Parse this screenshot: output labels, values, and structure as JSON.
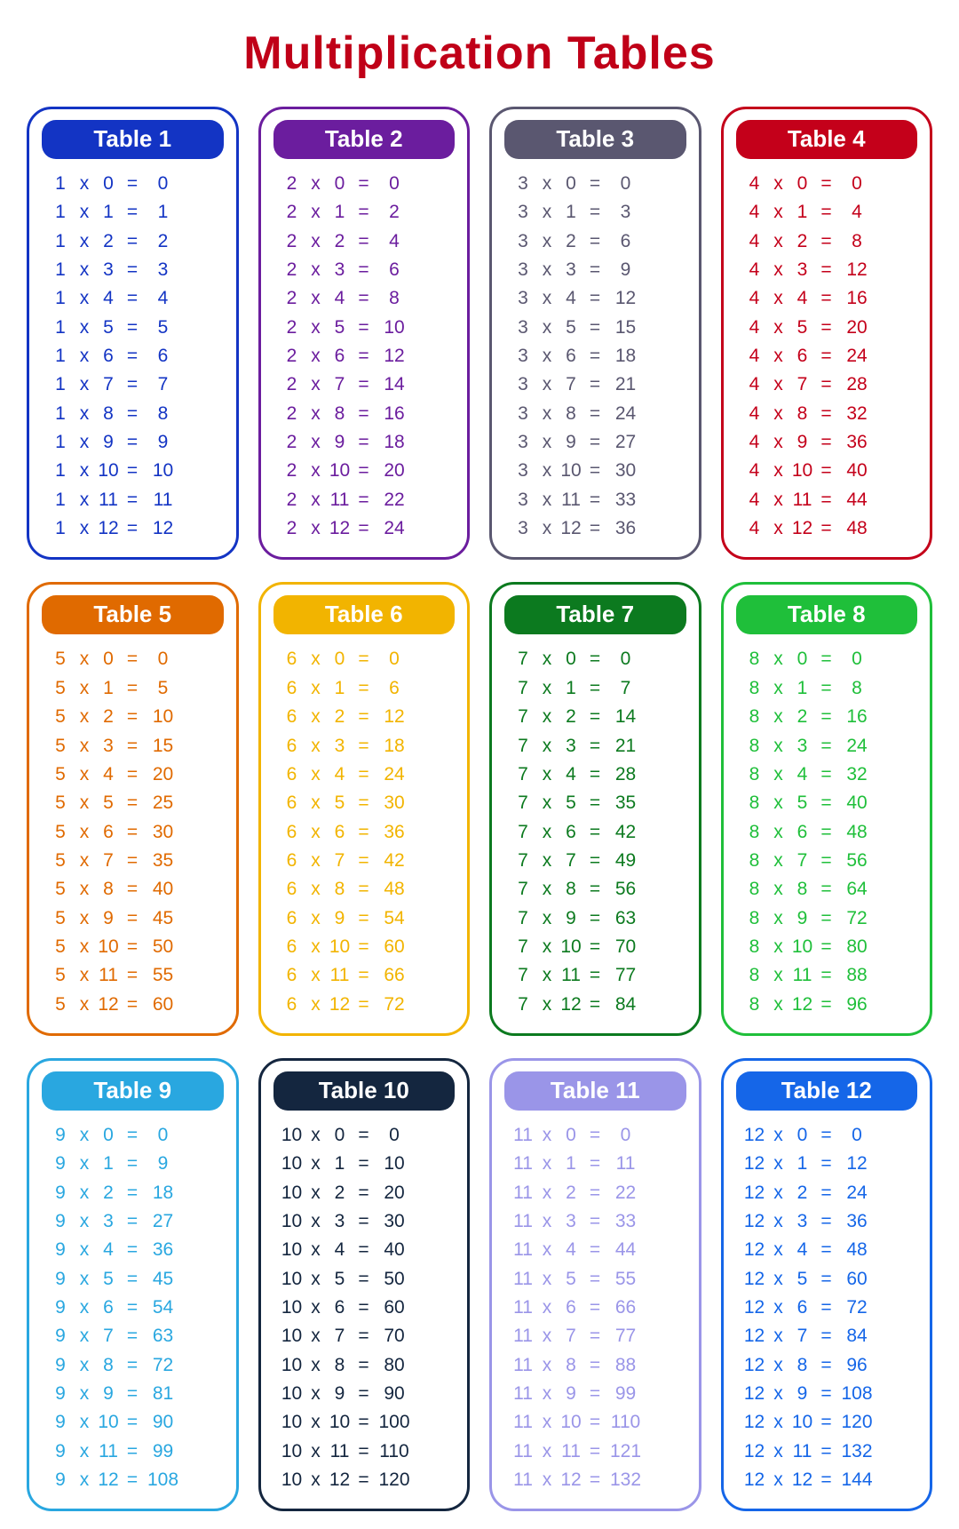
{
  "page": {
    "title": "Multiplication Tables",
    "title_color": "#c00018",
    "background": "#ffffff",
    "columns": 4
  },
  "operators": {
    "times": "x",
    "equals": "="
  },
  "range": {
    "start": 0,
    "end": 12
  },
  "tables": [
    {
      "n": 1,
      "label": "Table 1",
      "color": "#1334c4",
      "header_bg": "#1334c4",
      "text_color": "#1334c4"
    },
    {
      "n": 2,
      "label": "Table 2",
      "color": "#6b1d9e",
      "header_bg": "#6b1d9e",
      "text_color": "#6b1d9e"
    },
    {
      "n": 3,
      "label": "Table 3",
      "color": "#5a5770",
      "header_bg": "#5a5770",
      "text_color": "#5a5770"
    },
    {
      "n": 4,
      "label": "Table 4",
      "color": "#c4001a",
      "header_bg": "#c4001a",
      "text_color": "#c4001a"
    },
    {
      "n": 5,
      "label": "Table 5",
      "color": "#e06a00",
      "header_bg": "#e06a00",
      "text_color": "#e06a00"
    },
    {
      "n": 6,
      "label": "Table 6",
      "color": "#f2b400",
      "header_bg": "#f2b400",
      "text_color": "#f2b400"
    },
    {
      "n": 7,
      "label": "Table 7",
      "color": "#0c7a1f",
      "header_bg": "#0c7a1f",
      "text_color": "#0c7a1f"
    },
    {
      "n": 8,
      "label": "Table 8",
      "color": "#1fbf3a",
      "header_bg": "#1fbf3a",
      "text_color": "#1fbf3a"
    },
    {
      "n": 9,
      "label": "Table 9",
      "color": "#29a7e0",
      "header_bg": "#29a7e0",
      "text_color": "#29a7e0"
    },
    {
      "n": 10,
      "label": "Table 10",
      "color": "#14263f",
      "header_bg": "#14263f",
      "text_color": "#14263f"
    },
    {
      "n": 11,
      "label": "Table 11",
      "color": "#9a95e8",
      "header_bg": "#9a95e8",
      "text_color": "#9a95e8"
    },
    {
      "n": 12,
      "label": "Table 12",
      "color": "#1566e8",
      "header_bg": "#1566e8",
      "text_color": "#1566e8"
    }
  ]
}
